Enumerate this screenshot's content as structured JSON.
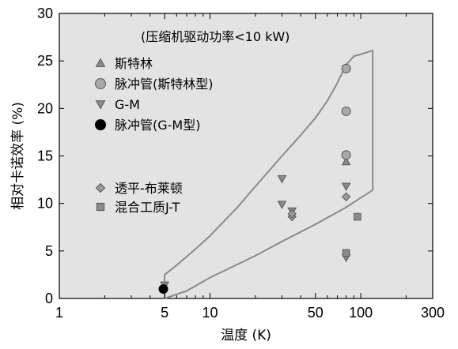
{
  "chart_data": {
    "type": "scatter",
    "title": "",
    "xlabel": "温度 (K)",
    "ylabel": "相对卡诺效率 (%)",
    "xscale": "log",
    "xlim": [
      1,
      300
    ],
    "ylim": [
      0,
      30
    ],
    "x_ticks": [
      1,
      5,
      10,
      50,
      100,
      300
    ],
    "x_tick_labels": [
      "1",
      "5",
      "10",
      "50",
      "100",
      "300"
    ],
    "y_ticks": [
      0,
      5,
      10,
      15,
      20,
      25,
      30
    ],
    "y_tick_labels": [
      "0",
      "5",
      "10",
      "15",
      "20",
      "25",
      "30"
    ],
    "annotation": "(压缩机驱动功率<10 kW)",
    "background_color": "#e3e3e3",
    "envelope_color": "#8a8a8a",
    "envelope": {
      "upper": [
        [
          5,
          2.5
        ],
        [
          6,
          3.5
        ],
        [
          8,
          5.2
        ],
        [
          10,
          6.6
        ],
        [
          15,
          9.5
        ],
        [
          20,
          11.8
        ],
        [
          30,
          15.0
        ],
        [
          40,
          17.2
        ],
        [
          50,
          19.0
        ],
        [
          60,
          20.8
        ],
        [
          70,
          22.7
        ],
        [
          80,
          24.6
        ],
        [
          90,
          25.5
        ],
        [
          100,
          25.7
        ],
        [
          120,
          26.1
        ]
      ],
      "lower": [
        [
          5,
          0.0
        ],
        [
          7,
          0.8
        ],
        [
          10,
          2.2
        ],
        [
          20,
          4.5
        ],
        [
          30,
          6.0
        ],
        [
          50,
          7.8
        ],
        [
          80,
          9.6
        ],
        [
          100,
          10.6
        ],
        [
          120,
          11.4
        ]
      ]
    },
    "legend": {
      "placement": "top-left"
    },
    "series": [
      {
        "name": "斯特林",
        "marker": "triangle-up",
        "color": "#8a8a8a",
        "points": [
          [
            80,
            14.4
          ]
        ]
      },
      {
        "name": "脉冲管(斯特林型)",
        "marker": "circle",
        "color": "#a8a8a8",
        "points": [
          [
            80,
            24.2
          ],
          [
            80,
            19.7
          ],
          [
            80,
            15.1
          ]
        ]
      },
      {
        "name": "G-M",
        "marker": "triangle-down",
        "color": "#8a8a8a",
        "points": [
          [
            5,
            1.4
          ],
          [
            30,
            12.6
          ],
          [
            30,
            9.9
          ],
          [
            35,
            9.2
          ],
          [
            80,
            11.8
          ],
          [
            80,
            4.3
          ]
        ]
      },
      {
        "name": "脉冲管(G-M型)",
        "marker": "circle",
        "color": "#000000",
        "points": [
          [
            4.9,
            1.0
          ]
        ]
      },
      {
        "name": "透平-布莱顿",
        "marker": "diamond",
        "color": "#9a9a9a",
        "points": [
          [
            35,
            8.6
          ],
          [
            35,
            8.9
          ],
          [
            80,
            10.7
          ]
        ]
      },
      {
        "name": "混合工质J-T",
        "marker": "square",
        "color": "#8a8a8a",
        "points": [
          [
            80,
            4.8
          ],
          [
            95,
            8.6
          ]
        ]
      }
    ]
  }
}
